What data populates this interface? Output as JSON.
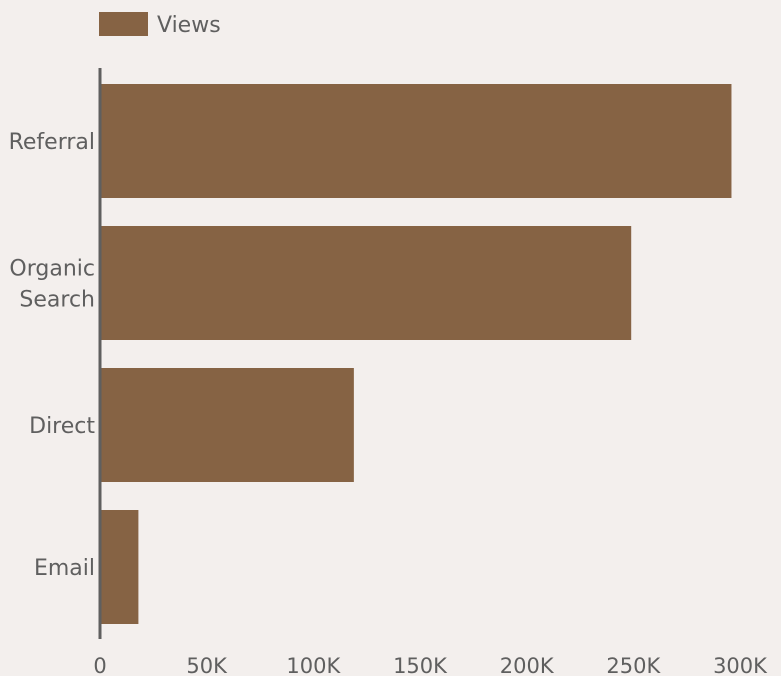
{
  "chart_data": {
    "type": "bar",
    "orientation": "horizontal",
    "categories": [
      "Referral",
      "Organic Search",
      "Direct",
      "Email"
    ],
    "category_lines": [
      [
        "Referral"
      ],
      [
        "Organic",
        "Search"
      ],
      [
        "Direct"
      ],
      [
        "Email"
      ]
    ],
    "series": [
      {
        "name": "Views",
        "values": [
          296000,
          249000,
          119000,
          18000
        ],
        "color": "#866344"
      }
    ],
    "x_ticks": [
      0,
      50000,
      100000,
      150000,
      200000,
      250000,
      300000
    ],
    "x_tick_labels": [
      "0",
      "50K",
      "100K",
      "150K",
      "200K",
      "250K",
      "300K"
    ],
    "xlim": [
      0,
      300000
    ],
    "legend_position": "top-left",
    "grid": false,
    "colors": {
      "background": "#f3efed",
      "axis": "#5f5f5f",
      "text": "#5f5f5f"
    }
  }
}
